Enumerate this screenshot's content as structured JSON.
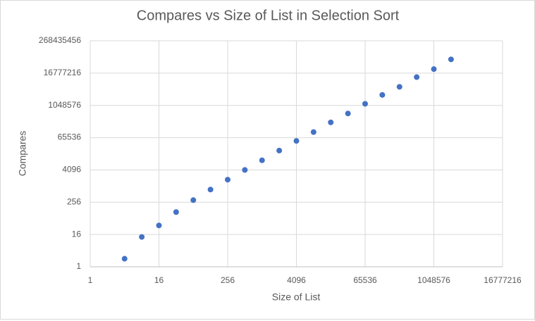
{
  "chart_data": {
    "type": "scatter",
    "title": "Compares vs Size of List in Selection Sort",
    "x_label": "Size of List",
    "y_label": "Compares",
    "x": [
      4,
      8,
      16,
      32,
      64,
      128,
      256,
      512,
      1024,
      2048,
      4096,
      8192,
      16384,
      32768,
      65536,
      131072,
      262144,
      524288,
      1048576,
      2097152
    ],
    "values": [
      2,
      13,
      35,
      110,
      307,
      760,
      1780,
      4100,
      9400,
      21600,
      49700,
      106000,
      244000,
      524000,
      1200000,
      2580000,
      5160000,
      11900000,
      23700000,
      54600000
    ],
    "color": "#4472c4",
    "xscale": "log",
    "yscale": "log",
    "log_base": 2,
    "xlim": [
      1,
      16777216
    ],
    "xticks": [
      1,
      16,
      256,
      4096,
      65536,
      1048576,
      16777216
    ],
    "ylim": [
      1,
      268435456
    ],
    "yticks": [
      1,
      16,
      256,
      4096,
      65536,
      1048576,
      16777216,
      268435456
    ],
    "grid": true
  }
}
